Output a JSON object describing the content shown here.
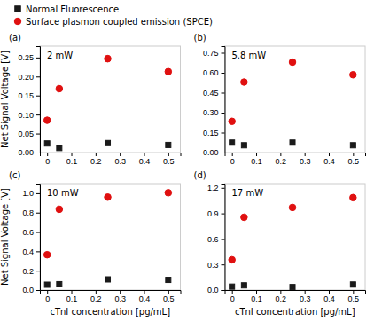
{
  "chart_data": [
    {
      "type": "scatter",
      "title": "2 mW",
      "annotations": [
        "(a)"
      ],
      "ylabel": "Net Signal Voltage [V]",
      "legend": "top",
      "xlim": [
        -0.03,
        0.55
      ],
      "xticks": [
        0,
        0.1,
        0.2,
        0.3,
        0.4,
        0.5
      ],
      "ylim": [
        0,
        0.28
      ],
      "yticks": [
        {
          "value": 0.0,
          "label": "0.00"
        },
        0.05,
        {
          "value": 0.1,
          "label": "0.10"
        },
        0.15,
        {
          "value": 0.2,
          "label": "0.20"
        },
        0.25
      ],
      "series": [
        {
          "name": "Normal Fluorescence",
          "color": "#1a1a1a",
          "marker": "square",
          "x": [
            0.0,
            0.05,
            0.25,
            0.5
          ],
          "values": [
            0.024,
            0.012,
            0.025,
            0.02
          ],
          "errors": [
            0.003,
            0.003,
            0.005,
            0.003
          ]
        },
        {
          "name": "Surface plasmon coupled emission (SPCE)",
          "color": "#e01010",
          "marker": "circle",
          "x": [
            0.0,
            0.05,
            0.25,
            0.5
          ],
          "values": [
            0.085,
            0.168,
            0.247,
            0.213
          ],
          "errors": [
            0.005,
            0.005,
            0.008,
            0.005
          ]
        }
      ]
    },
    {
      "type": "scatter",
      "title": "5.8 mW",
      "annotations": [
        "(b)"
      ],
      "xlim": [
        -0.03,
        0.55
      ],
      "xticks": [
        0,
        0.1,
        0.2,
        0.3,
        0.4,
        0.5
      ],
      "ylim": [
        0,
        0.8
      ],
      "yticks": [
        {
          "value": 0.0,
          "label": "0.00"
        },
        0.15,
        {
          "value": 0.3,
          "label": "0.30"
        },
        0.45,
        {
          "value": 0.6,
          "label": "0.60"
        },
        0.75
      ],
      "series": [
        {
          "color": "#1a1a1a",
          "marker": "square",
          "x": [
            0.0,
            0.05,
            0.25,
            0.5
          ],
          "values": [
            0.075,
            0.055,
            0.075,
            0.055
          ],
          "errors": [
            0.01,
            0.005,
            0.01,
            0.005
          ]
        },
        {
          "color": "#e01010",
          "marker": "circle",
          "x": [
            0.0,
            0.05,
            0.25,
            0.5
          ],
          "values": [
            0.235,
            0.53,
            0.68,
            0.585
          ],
          "errors": [
            0.01,
            0.01,
            0.015,
            0.01
          ]
        }
      ]
    },
    {
      "type": "scatter",
      "title": "10 mW",
      "annotations": [
        "(c)"
      ],
      "xlabel": "cTnI concentration [pg/mL]",
      "ylabel": "Net Signal Voltage [V]",
      "xlim": [
        -0.03,
        0.55
      ],
      "xticks": [
        0,
        0.1,
        0.2,
        0.3,
        0.4,
        0.5
      ],
      "ylim": [
        0,
        1.1
      ],
      "yticks": [
        {
          "value": 0.0,
          "label": "0.0"
        },
        0.2,
        0.4,
        0.6,
        0.8,
        {
          "value": 1.0,
          "label": "1.0"
        }
      ],
      "series": [
        {
          "color": "#1a1a1a",
          "marker": "square",
          "x": [
            0.0,
            0.05,
            0.25,
            0.5
          ],
          "values": [
            0.055,
            0.06,
            0.11,
            0.105
          ],
          "errors": [
            0.005,
            0.005,
            0.015,
            0.01
          ]
        },
        {
          "color": "#e01010",
          "marker": "circle",
          "x": [
            0.0,
            0.05,
            0.25,
            0.5
          ],
          "values": [
            0.365,
            0.835,
            0.96,
            1.005
          ],
          "errors": [
            0.01,
            0.015,
            0.015,
            0.02
          ]
        }
      ]
    },
    {
      "type": "scatter",
      "title": "17 mW",
      "annotations": [
        "(d)"
      ],
      "xlabel": "cTnI concentration [pg/mL]",
      "xlim": [
        -0.03,
        0.55
      ],
      "xticks": [
        0,
        0.1,
        0.2,
        0.3,
        0.4,
        0.5
      ],
      "ylim": [
        0,
        1.25
      ],
      "yticks": [
        {
          "value": 0.0,
          "label": "0.0"
        },
        0.3,
        0.6,
        0.9,
        1.2
      ],
      "series": [
        {
          "color": "#1a1a1a",
          "marker": "square",
          "x": [
            0.0,
            0.05,
            0.25,
            0.5
          ],
          "values": [
            0.04,
            0.055,
            0.035,
            0.065
          ],
          "errors": [
            0.005,
            0.005,
            0.005,
            0.008
          ]
        },
        {
          "color": "#e01010",
          "marker": "circle",
          "x": [
            0.0,
            0.05,
            0.25,
            0.5
          ],
          "values": [
            0.355,
            0.855,
            0.97,
            1.085
          ],
          "errors": [
            0.01,
            0.015,
            0.015,
            0.02
          ]
        }
      ]
    }
  ]
}
